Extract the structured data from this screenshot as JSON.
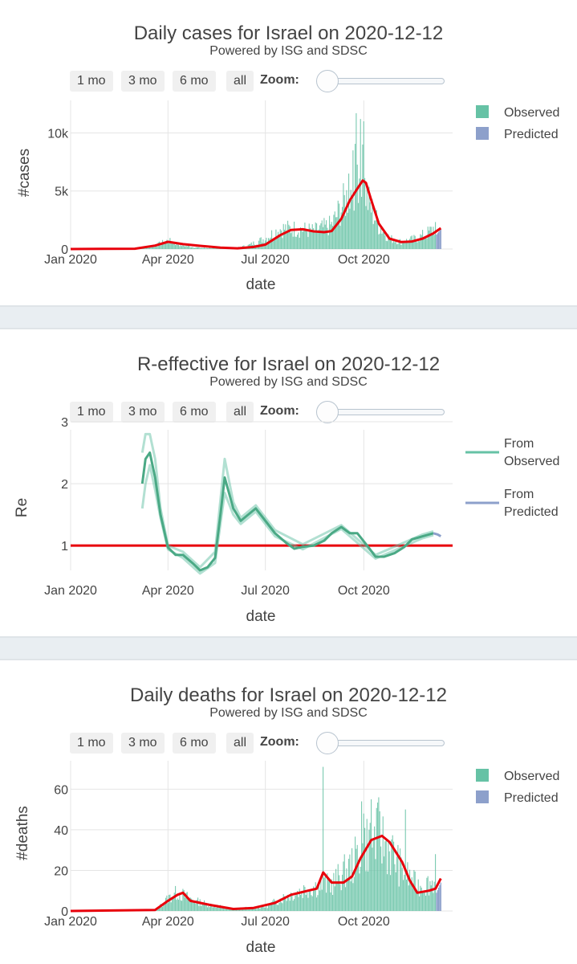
{
  "controls": {
    "buttons": [
      "1 mo",
      "3 mo",
      "6 mo",
      "all"
    ],
    "zoom_label": "Zoom:"
  },
  "panels": {
    "cases": {
      "title": "Daily cases for Israel on 2020-12-12",
      "subtitle": "Powered by ISG and SDSC"
    },
    "re": {
      "title": "R-effective for Israel on 2020-12-12",
      "subtitle": "Powered by ISG and SDSC"
    },
    "deaths": {
      "title": "Daily deaths for Israel on 2020-12-12",
      "subtitle": "Powered by ISG and SDSC"
    }
  },
  "colors": {
    "observed": "#66c2a5",
    "predicted": "#8da0cb",
    "trend": "#e8000b",
    "grid": "#e5e5e5"
  },
  "chart_data": [
    {
      "type": "bar",
      "title": "Daily cases for Israel on 2020-12-12",
      "subtitle": "Powered by ISG and SDSC",
      "xlabel": "date",
      "ylabel": "#cases",
      "xlim": [
        "2020-01-01",
        "2020-12-23"
      ],
      "ylim": [
        0,
        12800
      ],
      "x_ticks": [
        "Jan 2020",
        "Apr 2020",
        "Jul 2020",
        "Oct 2020"
      ],
      "y_ticks": [
        {
          "value": 0,
          "label": "0"
        },
        {
          "value": 5000,
          "label": "5k"
        },
        {
          "value": 10000,
          "label": "10k"
        }
      ],
      "legend": [
        "Observed",
        "Predicted"
      ],
      "legend_position": "right",
      "grid": true,
      "bars_observed_keypoints": [
        [
          "2020-03-01",
          0
        ],
        [
          "2020-03-20",
          300
        ],
        [
          "2020-04-01",
          700
        ],
        [
          "2020-04-15",
          300
        ],
        [
          "2020-05-01",
          100
        ],
        [
          "2020-06-01",
          50
        ],
        [
          "2020-06-15",
          300
        ],
        [
          "2020-07-01",
          900
        ],
        [
          "2020-07-15",
          1700
        ],
        [
          "2020-08-01",
          1700
        ],
        [
          "2020-08-15",
          1500
        ],
        [
          "2020-09-01",
          2000
        ],
        [
          "2020-09-10",
          3500
        ],
        [
          "2020-09-20",
          5000
        ],
        [
          "2020-09-25",
          7000
        ],
        [
          "2020-09-30",
          6000
        ],
        [
          "2020-10-05",
          4000
        ],
        [
          "2020-10-15",
          2000
        ],
        [
          "2020-10-25",
          900
        ],
        [
          "2020-11-05",
          600
        ],
        [
          "2020-11-20",
          900
        ],
        [
          "2020-12-01",
          1400
        ],
        [
          "2020-12-07",
          1900
        ]
      ],
      "bars_observed_spikes": [
        [
          "2020-09-24",
          11700
        ],
        [
          "2020-09-28",
          11200
        ],
        [
          "2020-09-21",
          8500
        ],
        [
          "2020-09-30",
          9000
        ],
        [
          "2020-10-01",
          11000
        ],
        [
          "2020-09-17",
          6500
        ]
      ],
      "observed_range": [
        "2020-03-01",
        "2020-12-07"
      ],
      "bars_predicted": [
        [
          "2020-12-08",
          1250
        ],
        [
          "2020-12-12",
          1700
        ]
      ],
      "trend_line": [
        [
          "2020-01-01",
          0
        ],
        [
          "2020-03-01",
          30
        ],
        [
          "2020-03-20",
          300
        ],
        [
          "2020-04-01",
          620
        ],
        [
          "2020-04-15",
          420
        ],
        [
          "2020-05-01",
          280
        ],
        [
          "2020-05-20",
          120
        ],
        [
          "2020-06-05",
          60
        ],
        [
          "2020-06-20",
          180
        ],
        [
          "2020-07-01",
          380
        ],
        [
          "2020-07-15",
          1200
        ],
        [
          "2020-07-25",
          1650
        ],
        [
          "2020-08-05",
          1700
        ],
        [
          "2020-08-15",
          1520
        ],
        [
          "2020-08-25",
          1450
        ],
        [
          "2020-09-01",
          1550
        ],
        [
          "2020-09-10",
          2600
        ],
        [
          "2020-09-18",
          4200
        ],
        [
          "2020-09-25",
          5200
        ],
        [
          "2020-09-30",
          5900
        ],
        [
          "2020-10-03",
          5700
        ],
        [
          "2020-10-08",
          4200
        ],
        [
          "2020-10-15",
          2200
        ],
        [
          "2020-10-25",
          900
        ],
        [
          "2020-11-05",
          600
        ],
        [
          "2020-11-15",
          650
        ],
        [
          "2020-11-25",
          900
        ],
        [
          "2020-12-05",
          1350
        ],
        [
          "2020-12-12",
          1800
        ]
      ]
    },
    {
      "type": "line",
      "title": "R-effective for Israel on 2020-12-12",
      "subtitle": "Powered by ISG and SDSC",
      "xlabel": "date",
      "ylabel": "Re",
      "xlim": [
        "2020-01-01",
        "2020-12-23"
      ],
      "ylim": [
        0.6,
        3.0
      ],
      "x_ticks": [
        "Jan 2020",
        "Apr 2020",
        "Jul 2020",
        "Oct 2020"
      ],
      "y_ticks": [
        {
          "value": 1,
          "label": "1"
        },
        {
          "value": 2,
          "label": "2"
        },
        {
          "value": 3,
          "label": "3"
        }
      ],
      "legend": [
        "From Observed",
        "From Predicted"
      ],
      "legend_position": "right",
      "grid": true,
      "reference_line": 1,
      "series": [
        {
          "name": "From Observed",
          "values": [
            [
              "2020-03-08",
              2.0
            ],
            [
              "2020-03-11",
              2.4
            ],
            [
              "2020-03-15",
              2.5
            ],
            [
              "2020-03-20",
              2.1
            ],
            [
              "2020-03-25",
              1.5
            ],
            [
              "2020-04-01",
              0.97
            ],
            [
              "2020-04-08",
              0.85
            ],
            [
              "2020-04-15",
              0.85
            ],
            [
              "2020-04-25",
              0.7
            ],
            [
              "2020-05-01",
              0.6
            ],
            [
              "2020-05-08",
              0.65
            ],
            [
              "2020-05-15",
              0.8
            ],
            [
              "2020-05-20",
              1.5
            ],
            [
              "2020-05-24",
              2.1
            ],
            [
              "2020-06-01",
              1.6
            ],
            [
              "2020-06-08",
              1.4
            ],
            [
              "2020-06-15",
              1.5
            ],
            [
              "2020-06-22",
              1.6
            ],
            [
              "2020-07-01",
              1.4
            ],
            [
              "2020-07-10",
              1.2
            ],
            [
              "2020-07-20",
              1.05
            ],
            [
              "2020-07-28",
              0.95
            ],
            [
              "2020-08-05",
              0.98
            ],
            [
              "2020-08-15",
              1.0
            ],
            [
              "2020-08-25",
              1.08
            ],
            [
              "2020-09-01",
              1.2
            ],
            [
              "2020-09-10",
              1.3
            ],
            [
              "2020-09-18",
              1.2
            ],
            [
              "2020-09-25",
              1.2
            ],
            [
              "2020-10-05",
              0.98
            ],
            [
              "2020-10-12",
              0.82
            ],
            [
              "2020-10-20",
              0.82
            ],
            [
              "2020-10-30",
              0.88
            ],
            [
              "2020-11-08",
              0.98
            ],
            [
              "2020-11-15",
              1.1
            ],
            [
              "2020-11-25",
              1.15
            ],
            [
              "2020-12-05",
              1.2
            ]
          ]
        },
        {
          "name": "From Predicted",
          "values": [
            [
              "2020-12-05",
              1.2
            ],
            [
              "2020-12-09",
              1.18
            ],
            [
              "2020-12-12",
              1.15
            ]
          ]
        }
      ],
      "band_upper": [
        [
          "2020-03-08",
          2.5
        ],
        [
          "2020-03-11",
          2.8
        ],
        [
          "2020-03-15",
          2.8
        ],
        [
          "2020-03-20",
          2.4
        ],
        [
          "2020-03-25",
          1.6
        ],
        [
          "2020-04-01",
          1.0
        ],
        [
          "2020-04-15",
          0.9
        ],
        [
          "2020-05-01",
          0.65
        ],
        [
          "2020-05-15",
          0.9
        ],
        [
          "2020-05-24",
          2.4
        ],
        [
          "2020-06-01",
          1.7
        ],
        [
          "2020-06-08",
          1.45
        ],
        [
          "2020-06-22",
          1.65
        ],
        [
          "2020-07-10",
          1.25
        ],
        [
          "2020-08-05",
          1.02
        ],
        [
          "2020-09-10",
          1.33
        ],
        [
          "2020-10-12",
          0.85
        ],
        [
          "2020-11-25",
          1.18
        ],
        [
          "2020-12-05",
          1.23
        ]
      ],
      "band_lower": [
        [
          "2020-03-08",
          1.6
        ],
        [
          "2020-03-11",
          2.0
        ],
        [
          "2020-03-15",
          2.3
        ],
        [
          "2020-03-20",
          1.9
        ],
        [
          "2020-03-25",
          1.45
        ],
        [
          "2020-04-01",
          0.94
        ],
        [
          "2020-04-15",
          0.8
        ],
        [
          "2020-05-01",
          0.55
        ],
        [
          "2020-05-15",
          0.72
        ],
        [
          "2020-05-24",
          1.85
        ],
        [
          "2020-06-01",
          1.5
        ],
        [
          "2020-06-08",
          1.35
        ],
        [
          "2020-06-22",
          1.55
        ],
        [
          "2020-07-10",
          1.15
        ],
        [
          "2020-08-05",
          0.94
        ],
        [
          "2020-09-10",
          1.27
        ],
        [
          "2020-10-12",
          0.79
        ],
        [
          "2020-11-25",
          1.12
        ],
        [
          "2020-12-05",
          1.17
        ]
      ]
    },
    {
      "type": "bar",
      "title": "Daily deaths for Israel on 2020-12-12",
      "subtitle": "Powered by ISG and SDSC",
      "xlabel": "date",
      "ylabel": "#deaths",
      "xlim": [
        "2020-01-01",
        "2020-12-23"
      ],
      "ylim": [
        0,
        74
      ],
      "x_ticks": [
        "Jan 2020",
        "Apr 2020",
        "Jul 2020",
        "Oct 2020"
      ],
      "y_ticks": [
        {
          "value": 0,
          "label": "0"
        },
        {
          "value": 20,
          "label": "20"
        },
        {
          "value": 40,
          "label": "40"
        },
        {
          "value": 60,
          "label": "60"
        }
      ],
      "legend": [
        "Observed",
        "Predicted"
      ],
      "legend_position": "right",
      "grid": true,
      "bars_observed_keypoints": [
        [
          "2020-03-20",
          0
        ],
        [
          "2020-04-01",
          6
        ],
        [
          "2020-04-10",
          9
        ],
        [
          "2020-04-25",
          5
        ],
        [
          "2020-05-10",
          3
        ],
        [
          "2020-06-01",
          1
        ],
        [
          "2020-07-01",
          2
        ],
        [
          "2020-07-20",
          7
        ],
        [
          "2020-08-10",
          11
        ],
        [
          "2020-09-01",
          13
        ],
        [
          "2020-09-20",
          22
        ],
        [
          "2020-10-01",
          32
        ],
        [
          "2020-10-15",
          36
        ],
        [
          "2020-10-25",
          30
        ],
        [
          "2020-11-05",
          20
        ],
        [
          "2020-11-20",
          12
        ],
        [
          "2020-12-07",
          14
        ]
      ],
      "bars_observed_spikes": [
        [
          "2020-08-24",
          71
        ],
        [
          "2020-09-29",
          54
        ],
        [
          "2020-10-08",
          55
        ],
        [
          "2020-10-15",
          56
        ],
        [
          "2020-11-09",
          50
        ],
        [
          "2020-12-07",
          28
        ],
        [
          "2020-10-01",
          48
        ]
      ],
      "observed_range": [
        "2020-03-20",
        "2020-12-07"
      ],
      "bars_predicted": [
        [
          "2020-12-08",
          9
        ],
        [
          "2020-12-12",
          14
        ]
      ],
      "trend_line": [
        [
          "2020-01-01",
          0
        ],
        [
          "2020-03-20",
          0.5
        ],
        [
          "2020-04-01",
          5
        ],
        [
          "2020-04-10",
          8
        ],
        [
          "2020-04-15",
          9
        ],
        [
          "2020-04-22",
          5
        ],
        [
          "2020-05-10",
          3
        ],
        [
          "2020-06-01",
          1
        ],
        [
          "2020-06-20",
          1.5
        ],
        [
          "2020-07-10",
          4
        ],
        [
          "2020-07-25",
          8
        ],
        [
          "2020-08-10",
          10
        ],
        [
          "2020-08-18",
          11
        ],
        [
          "2020-08-24",
          19
        ],
        [
          "2020-09-01",
          14
        ],
        [
          "2020-09-12",
          14
        ],
        [
          "2020-09-20",
          17
        ],
        [
          "2020-09-28",
          26
        ],
        [
          "2020-10-08",
          35
        ],
        [
          "2020-10-18",
          37
        ],
        [
          "2020-10-25",
          34
        ],
        [
          "2020-10-31",
          29
        ],
        [
          "2020-11-06",
          24
        ],
        [
          "2020-11-13",
          15
        ],
        [
          "2020-11-20",
          9
        ],
        [
          "2020-12-01",
          10
        ],
        [
          "2020-12-07",
          11
        ],
        [
          "2020-12-12",
          16
        ]
      ]
    }
  ]
}
